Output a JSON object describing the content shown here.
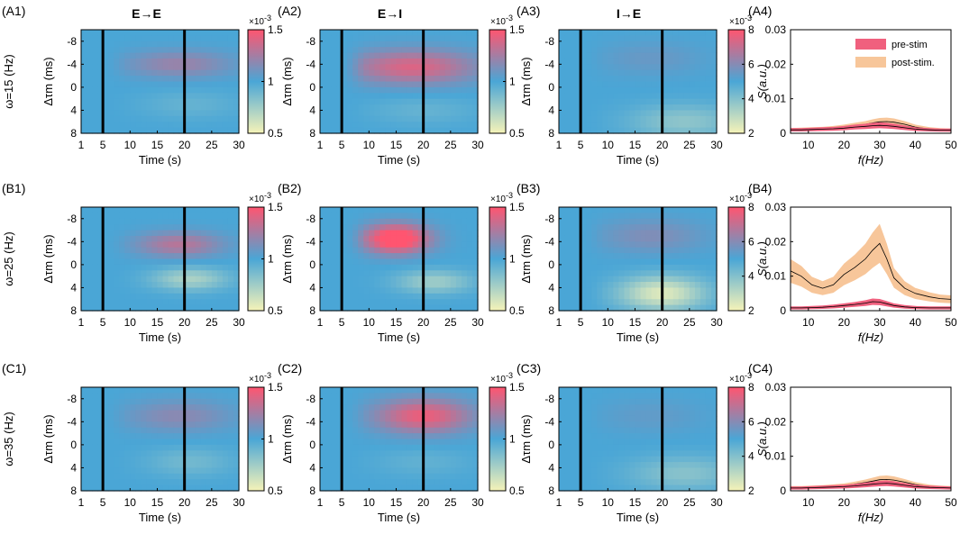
{
  "colors": {
    "heat_low": "#f6f3b8",
    "heat_mid": "#4aa6d6",
    "heat_high": "#ff5570",
    "pre_stim": "#f0607e",
    "post_stim": "#f7c69a",
    "stim_line": "#000000"
  },
  "chart_data": {
    "type": "heatmap",
    "column_titles": [
      "E→E",
      "E→I",
      "I→E"
    ],
    "row_labels": [
      "ω=15 (Hz)",
      "ω=25 (Hz)",
      "ω=35 (Hz)"
    ],
    "heatmap_xlabel": "Time (s)",
    "heatmap_ylabel": "Δτm (ms)",
    "heatmap_xticks": [
      "1",
      "5",
      "10",
      "15",
      "20",
      "25",
      "30"
    ],
    "heatmap_yticks": [
      "-8",
      "-4",
      "0",
      "4",
      "8"
    ],
    "xlim": [
      1,
      30
    ],
    "ylim": [
      -10,
      8
    ],
    "stim_lines_s": [
      5,
      20
    ],
    "colorbar_multiplier": "×10",
    "colorbar_exponent": "-3",
    "colorbar_scales": [
      {
        "min": 0.5,
        "max": 1.5,
        "ticks": [
          "1.5",
          "1",
          "0.5"
        ]
      },
      {
        "min": 0.5,
        "max": 1.5,
        "ticks": [
          "1.5",
          "1",
          "0.5"
        ]
      },
      {
        "min": 2,
        "max": 8,
        "ticks": [
          "8",
          "6",
          "4",
          "2"
        ]
      }
    ],
    "panel_labels": [
      [
        "(A1)",
        "(A2)",
        "(A3)",
        "(A4)"
      ],
      [
        "(B1)",
        "(B2)",
        "(B3)",
        "(B4)"
      ],
      [
        "(C1)",
        "(C2)",
        "(C3)",
        "(C4)"
      ]
    ],
    "spectrum": {
      "type": "area",
      "xlabel": "f(Hz)",
      "ylabel": "S(a.u.)",
      "xticks": [
        "10",
        "20",
        "30",
        "40",
        "50"
      ],
      "yticks": [
        "0",
        "0.01",
        "0.02",
        "0.03"
      ],
      "xlim": [
        5,
        50
      ],
      "ylim": [
        0,
        0.03
      ],
      "legend": [
        "pre-stim",
        "post-stim."
      ],
      "legend_position": "top-right",
      "freq": [
        5,
        8,
        11,
        14,
        17,
        20,
        23,
        26,
        28,
        30,
        32,
        34,
        37,
        40,
        44,
        47,
        50
      ],
      "rows": [
        {
          "pre": [
            0.001,
            0.001,
            0.0011,
            0.0012,
            0.0013,
            0.0015,
            0.0018,
            0.002,
            0.0022,
            0.0023,
            0.0022,
            0.002,
            0.0016,
            0.0012,
            0.001,
            0.0009,
            0.0009
          ],
          "post": [
            0.001,
            0.0011,
            0.0012,
            0.0013,
            0.0015,
            0.0018,
            0.0022,
            0.0026,
            0.003,
            0.0033,
            0.0034,
            0.0032,
            0.0026,
            0.0018,
            0.0012,
            0.001,
            0.0009
          ]
        },
        {
          "pre": [
            0.0008,
            0.0008,
            0.0009,
            0.001,
            0.0012,
            0.0015,
            0.0018,
            0.0022,
            0.0026,
            0.0025,
            0.002,
            0.0015,
            0.0011,
            0.0009,
            0.0008,
            0.0008,
            0.0008
          ],
          "post": [
            0.0115,
            0.01,
            0.0075,
            0.0065,
            0.0075,
            0.0105,
            0.0125,
            0.015,
            0.0175,
            0.0195,
            0.015,
            0.0095,
            0.0065,
            0.005,
            0.004,
            0.0035,
            0.0033
          ]
        },
        {
          "pre": [
            0.0008,
            0.0008,
            0.0009,
            0.001,
            0.0011,
            0.0012,
            0.0014,
            0.0017,
            0.0019,
            0.0021,
            0.0022,
            0.002,
            0.0016,
            0.0012,
            0.001,
            0.0009,
            0.0008
          ],
          "post": [
            0.0009,
            0.0009,
            0.001,
            0.0011,
            0.0013,
            0.0015,
            0.0019,
            0.0024,
            0.0028,
            0.0032,
            0.0033,
            0.0031,
            0.0025,
            0.0018,
            0.0012,
            0.001,
            0.0009
          ]
        }
      ]
    },
    "heatmaps": [
      [
        {
          "col": "E→E",
          "background": 1.0,
          "blobs": [
            {
              "t": 19,
              "tau": -4,
              "st": 10,
              "stau": 2.4,
              "amp": 0.22
            },
            {
              "t": 21,
              "tau": 3,
              "st": 9,
              "stau": 2.5,
              "amp": -0.08
            }
          ]
        },
        {
          "col": "E→I",
          "background": 1.0,
          "blobs": [
            {
              "t": 18,
              "tau": -3.5,
              "st": 12,
              "stau": 3.0,
              "amp": 0.4
            },
            {
              "t": 20,
              "tau": 4,
              "st": 10,
              "stau": 2.5,
              "amp": -0.08
            }
          ]
        },
        {
          "col": "I→E",
          "background": 5.0,
          "blobs": [
            {
              "t": 24,
              "tau": 6,
              "st": 10,
              "stau": 3.0,
              "amp": -1.2
            },
            {
              "t": 18,
              "tau": -5,
              "st": 10,
              "stau": 3.0,
              "amp": 0.5
            }
          ]
        }
      ],
      [
        {
          "col": "E→E",
          "background": 1.0,
          "blobs": [
            {
              "t": 19,
              "tau": -3.5,
              "st": 8,
              "stau": 2.2,
              "amp": 0.3
            },
            {
              "t": 21,
              "tau": 2.5,
              "st": 7,
              "stau": 2.0,
              "amp": -0.28
            }
          ]
        },
        {
          "col": "E→I",
          "background": 1.0,
          "blobs": [
            {
              "t": 15,
              "tau": -4.5,
              "st": 6,
              "stau": 2.5,
              "amp": 0.65
            },
            {
              "t": 22,
              "tau": 3,
              "st": 7,
              "stau": 2.0,
              "amp": -0.25
            }
          ]
        },
        {
          "col": "I→E",
          "background": 5.0,
          "blobs": [
            {
              "t": 20,
              "tau": 5,
              "st": 8,
              "stau": 3.0,
              "amp": -2.6
            },
            {
              "t": 18,
              "tau": -5,
              "st": 10,
              "stau": 3.0,
              "amp": 0.9
            }
          ]
        }
      ],
      [
        {
          "col": "E→E",
          "background": 1.0,
          "blobs": [
            {
              "t": 19,
              "tau": -5,
              "st": 10,
              "stau": 2.8,
              "amp": 0.18
            },
            {
              "t": 21,
              "tau": 3,
              "st": 8,
              "stau": 2.5,
              "amp": -0.12
            }
          ]
        },
        {
          "col": "E→I",
          "background": 1.0,
          "blobs": [
            {
              "t": 20,
              "tau": -5,
              "st": 9,
              "stau": 3.0,
              "amp": 0.45
            },
            {
              "t": 20,
              "tau": 3,
              "st": 9,
              "stau": 2.5,
              "amp": -0.07
            }
          ]
        },
        {
          "col": "I→E",
          "background": 5.0,
          "blobs": [
            {
              "t": 24,
              "tau": 5,
              "st": 10,
              "stau": 3.0,
              "amp": -1.1
            },
            {
              "t": 18,
              "tau": -5,
              "st": 10,
              "stau": 3.0,
              "amp": 0.4
            }
          ]
        }
      ]
    ]
  }
}
